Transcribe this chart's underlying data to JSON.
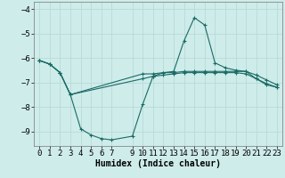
{
  "xlabel": "Humidex (Indice chaleur)",
  "bg_color": "#ceecea",
  "grid_color": "#b8dbd8",
  "line_color": "#1a6b65",
  "xlim": [
    -0.5,
    23.5
  ],
  "ylim": [
    -9.6,
    -3.7
  ],
  "yticks": [
    -9,
    -8,
    -7,
    -6,
    -5,
    -4
  ],
  "xticks": [
    0,
    1,
    2,
    3,
    4,
    5,
    6,
    7,
    9,
    10,
    11,
    12,
    13,
    14,
    15,
    16,
    17,
    18,
    19,
    20,
    21,
    22,
    23
  ],
  "series1_x": [
    0,
    1,
    2,
    3,
    10,
    11,
    12,
    13,
    14,
    15,
    16,
    17,
    18,
    19,
    20,
    21,
    22,
    23
  ],
  "series1_y": [
    -6.1,
    -6.25,
    -6.6,
    -7.5,
    -6.65,
    -6.65,
    -6.6,
    -6.6,
    -6.55,
    -6.55,
    -6.55,
    -6.55,
    -6.55,
    -6.55,
    -6.55,
    -6.7,
    -6.9,
    -7.1
  ],
  "series2_x": [
    0,
    1,
    2,
    3,
    4,
    5,
    6,
    7,
    9,
    10,
    11,
    12,
    13,
    14,
    15,
    16,
    17,
    18,
    19,
    20,
    21,
    22,
    23
  ],
  "series2_y": [
    -6.1,
    -6.25,
    -6.6,
    -7.5,
    -8.9,
    -9.15,
    -9.3,
    -9.35,
    -9.2,
    -7.9,
    -6.75,
    -6.6,
    -6.55,
    -5.3,
    -4.35,
    -4.65,
    -6.2,
    -6.4,
    -6.5,
    -6.55,
    -6.85,
    -7.1,
    -7.2
  ],
  "series3_x": [
    0,
    1,
    2,
    3,
    10,
    11,
    12,
    13,
    14,
    15,
    16,
    17,
    18,
    19,
    20,
    21,
    22,
    23
  ],
  "series3_y": [
    -6.1,
    -6.25,
    -6.6,
    -7.5,
    -6.85,
    -6.75,
    -6.7,
    -6.65,
    -6.6,
    -6.6,
    -6.6,
    -6.6,
    -6.6,
    -6.6,
    -6.65,
    -6.85,
    -7.05,
    -7.2
  ]
}
